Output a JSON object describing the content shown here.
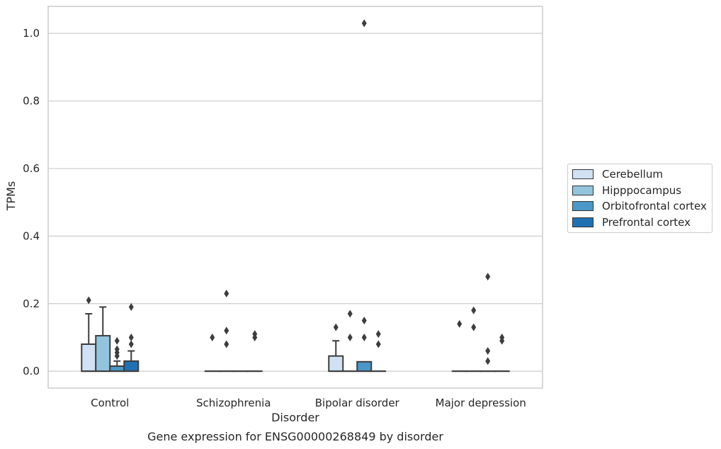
{
  "chart_data": {
    "type": "box",
    "title": "",
    "caption": "Gene expression for ENSG00000268849 by disorder",
    "xlabel": "Disorder",
    "ylabel": "TPMs",
    "ylim": [
      -0.05,
      1.08
    ],
    "yticks": [
      0.0,
      0.2,
      0.4,
      0.6,
      0.8,
      1.0
    ],
    "ytick_labels": [
      "0.0",
      "0.2",
      "0.4",
      "0.6",
      "0.8",
      "1.0"
    ],
    "grid": "horizontal",
    "legend_position": "right",
    "categories": [
      "Control",
      "Schizophrenia",
      "Bipolar disorder",
      "Major depression"
    ],
    "series": [
      {
        "name": "Cerebellum",
        "color": "#cfe1f2",
        "boxes": [
          {
            "q1": 0.0,
            "median": 0.0,
            "q3": 0.08,
            "whisker_low": 0.0,
            "whisker_high": 0.17,
            "outliers": [
              0.21
            ]
          },
          {
            "q1": 0.0,
            "median": 0.0,
            "q3": 0.0,
            "whisker_low": 0.0,
            "whisker_high": 0.0,
            "outliers": [
              0.1
            ]
          },
          {
            "q1": 0.0,
            "median": 0.0,
            "q3": 0.045,
            "whisker_low": 0.0,
            "whisker_high": 0.09,
            "outliers": [
              0.13
            ]
          },
          {
            "q1": 0.0,
            "median": 0.0,
            "q3": 0.0,
            "whisker_low": 0.0,
            "whisker_high": 0.0,
            "outliers": [
              0.14
            ]
          }
        ]
      },
      {
        "name": "Hipppocampus",
        "color": "#93c4de",
        "boxes": [
          {
            "q1": 0.0,
            "median": 0.0,
            "q3": 0.105,
            "whisker_low": 0.0,
            "whisker_high": 0.19,
            "outliers": []
          },
          {
            "q1": 0.0,
            "median": 0.0,
            "q3": 0.0,
            "whisker_low": 0.0,
            "whisker_high": 0.0,
            "outliers": [
              0.23,
              0.12,
              0.08
            ]
          },
          {
            "q1": 0.0,
            "median": 0.0,
            "q3": 0.0,
            "whisker_low": 0.0,
            "whisker_high": 0.0,
            "outliers": [
              0.17,
              0.1
            ]
          },
          {
            "q1": 0.0,
            "median": 0.0,
            "q3": 0.0,
            "whisker_low": 0.0,
            "whisker_high": 0.0,
            "outliers": [
              0.18,
              0.13
            ]
          }
        ]
      },
      {
        "name": "Orbitofrontal cortex",
        "color": "#4a98c9",
        "boxes": [
          {
            "q1": 0.0,
            "median": 0.0,
            "q3": 0.015,
            "whisker_low": 0.0,
            "whisker_high": 0.03,
            "outliers": [
              0.09,
              0.065,
              0.055,
              0.045
            ]
          },
          {
            "q1": 0.0,
            "median": 0.0,
            "q3": 0.0,
            "whisker_low": 0.0,
            "whisker_high": 0.0,
            "outliers": []
          },
          {
            "q1": 0.0,
            "median": 0.0,
            "q3": 0.028,
            "whisker_low": 0.0,
            "whisker_high": 0.028,
            "outliers": [
              1.03,
              0.15,
              0.1
            ]
          },
          {
            "q1": 0.0,
            "median": 0.0,
            "q3": 0.0,
            "whisker_low": 0.0,
            "whisker_high": 0.0,
            "outliers": [
              0.28,
              0.06,
              0.03
            ]
          }
        ]
      },
      {
        "name": "Prefrontal cortex",
        "color": "#2070b4",
        "boxes": [
          {
            "q1": 0.0,
            "median": 0.0,
            "q3": 0.03,
            "whisker_low": 0.0,
            "whisker_high": 0.06,
            "outliers": [
              0.19,
              0.1,
              0.08
            ]
          },
          {
            "q1": 0.0,
            "median": 0.0,
            "q3": 0.0,
            "whisker_low": 0.0,
            "whisker_high": 0.0,
            "outliers": [
              0.11,
              0.1
            ]
          },
          {
            "q1": 0.0,
            "median": 0.0,
            "q3": 0.0,
            "whisker_low": 0.0,
            "whisker_high": 0.0,
            "outliers": [
              0.11,
              0.08
            ]
          },
          {
            "q1": 0.0,
            "median": 0.0,
            "q3": 0.0,
            "whisker_low": 0.0,
            "whisker_high": 0.0,
            "outliers": [
              0.1,
              0.09
            ]
          }
        ]
      }
    ]
  }
}
